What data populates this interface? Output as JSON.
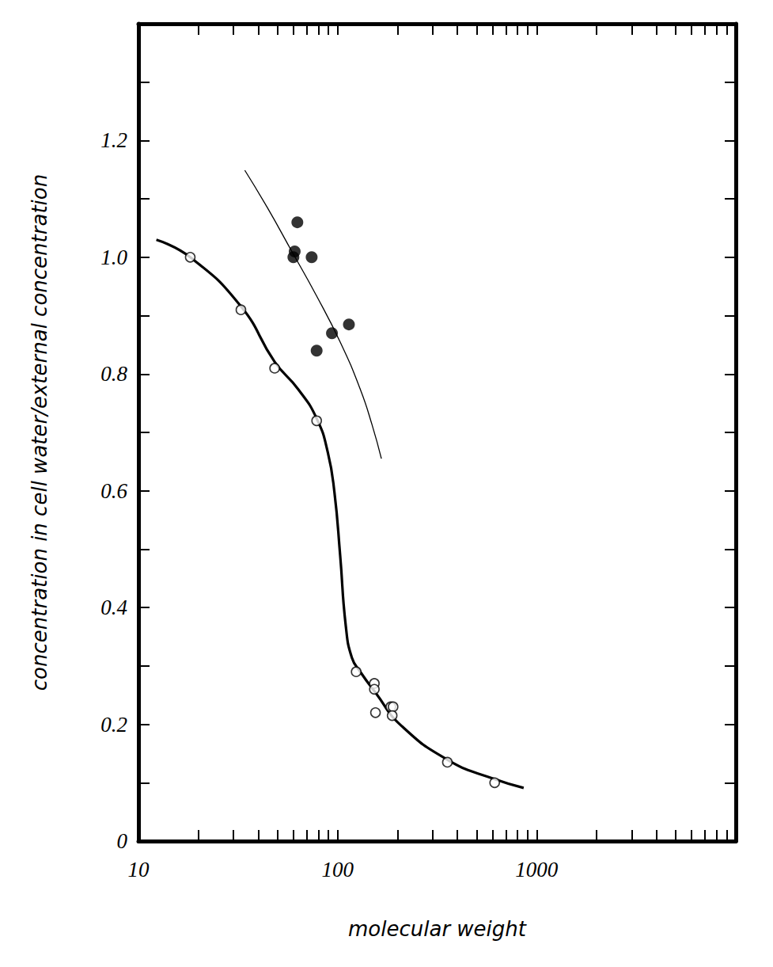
{
  "chart_data": {
    "type": "scatter",
    "xlabel": "molecular weight",
    "ylabel": "concentration in cell water/external concentration",
    "log": "x",
    "grid": false,
    "xlim": [
      10,
      10000
    ],
    "xticks": [
      10,
      100,
      1000
    ],
    "ylim": [
      0,
      1.4
    ],
    "yticks": [
      0,
      0.2,
      0.4,
      0.6,
      0.8,
      {
        "value": 1,
        "label": "1.0"
      },
      1.2
    ],
    "series": [
      {
        "type": "line",
        "line_style": "thick",
        "color": "#000000",
        "x": [
          12.3,
          18.2,
          32.7,
          48.3,
          63.4,
          78.5,
          89.3,
          96.4,
          103,
          110,
          118,
          130,
          156,
          207,
          362,
          615,
          860
        ],
        "values": [
          1.03,
          1.0,
          0.916,
          0.821,
          0.774,
          0.724,
          0.666,
          0.598,
          0.49,
          0.368,
          0.314,
          0.29,
          0.253,
          0.199,
          0.138,
          0.106,
          0.091
        ]
      },
      {
        "type": "line",
        "line_style": "thin",
        "color": "#000000",
        "x": [
          34.2,
          44.4,
          58.7,
          77.8,
          103,
          130,
          149,
          166
        ],
        "values": [
          1.149,
          1.085,
          1.011,
          0.936,
          0.855,
          0.774,
          0.713,
          0.655
        ]
      },
      {
        "type": "scatter",
        "marker": "open_circle",
        "color": "#000000",
        "x": [
          18.2,
          32.7,
          48.3,
          78.5,
          124,
          153,
          153,
          155,
          185,
          190,
          188,
          356,
          615
        ],
        "values": [
          1.0,
          0.91,
          0.81,
          0.72,
          0.29,
          0.27,
          0.26,
          0.22,
          0.23,
          0.23,
          0.215,
          0.135,
          0.1
        ]
      },
      {
        "type": "scatter",
        "marker": "filled_circle",
        "color": "#000000",
        "x": [
          62.8,
          60.9,
          60.0,
          74.1,
          78.5,
          93.7,
          114
        ],
        "values": [
          1.06,
          1.01,
          1.0,
          1.0,
          0.84,
          0.87,
          0.885
        ]
      }
    ]
  }
}
